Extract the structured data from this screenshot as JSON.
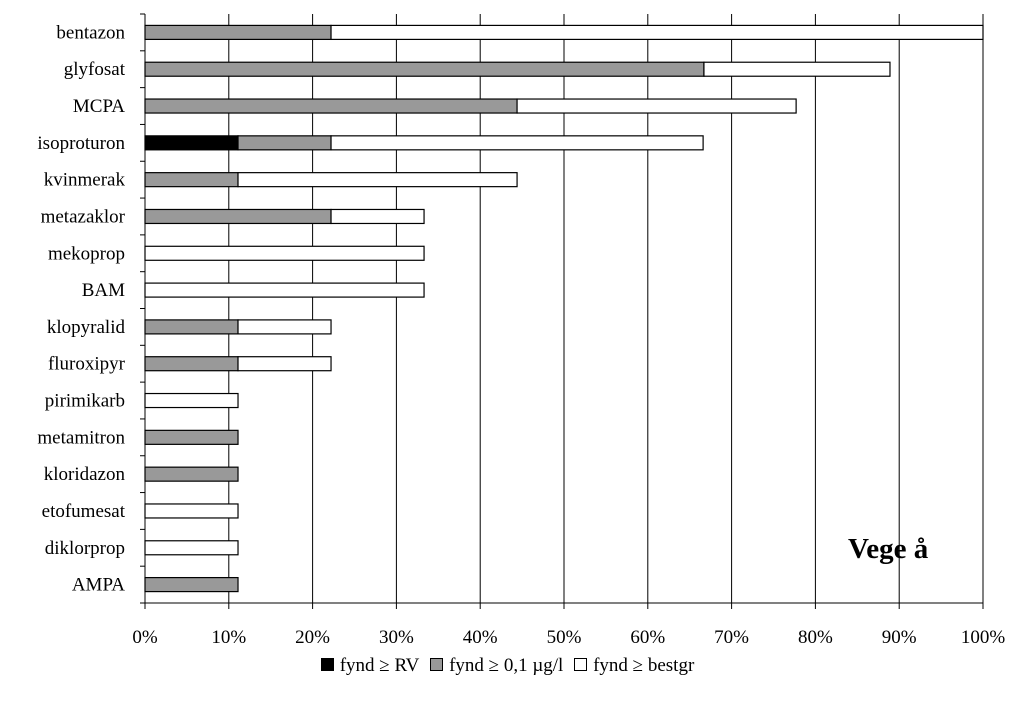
{
  "chart_data": {
    "type": "bar",
    "orientation": "horizontal",
    "stacked": true,
    "categories": [
      "bentazon",
      "glyfosat",
      "MCPA",
      "isoproturon",
      "kvinmerak",
      "metazaklor",
      "mekoprop",
      "BAM",
      "klopyralid",
      "fluroxipyr",
      "pirimikarb",
      "metamitron",
      "kloridazon",
      "etofumesat",
      "diklorprop",
      "AMPA"
    ],
    "series": [
      {
        "name": "fynd ≥ RV",
        "color": "#000000",
        "values": [
          0,
          0,
          0,
          11.1,
          0,
          0,
          0,
          0,
          0,
          0,
          0,
          0,
          0,
          0,
          0,
          0
        ]
      },
      {
        "name": "fynd ≥ 0,1 µg/l",
        "color": "#999999",
        "values": [
          22.2,
          66.7,
          44.4,
          11.1,
          11.1,
          22.2,
          0,
          0,
          11.1,
          11.1,
          0,
          11.1,
          11.1,
          0,
          0,
          11.1
        ]
      },
      {
        "name": "fynd ≥ bestgr",
        "color": "#ffffff",
        "values": [
          77.8,
          22.2,
          33.3,
          44.4,
          33.3,
          11.1,
          33.3,
          33.3,
          11.1,
          11.1,
          11.1,
          0,
          0,
          11.1,
          11.1,
          0
        ]
      }
    ],
    "xlim": [
      0,
      100
    ],
    "xticks": [
      "0%",
      "10%",
      "20%",
      "30%",
      "40%",
      "50%",
      "60%",
      "70%",
      "80%",
      "90%",
      "100%"
    ],
    "annotation": "Vege å",
    "grid": "vertical",
    "legend_position": "bottom"
  }
}
